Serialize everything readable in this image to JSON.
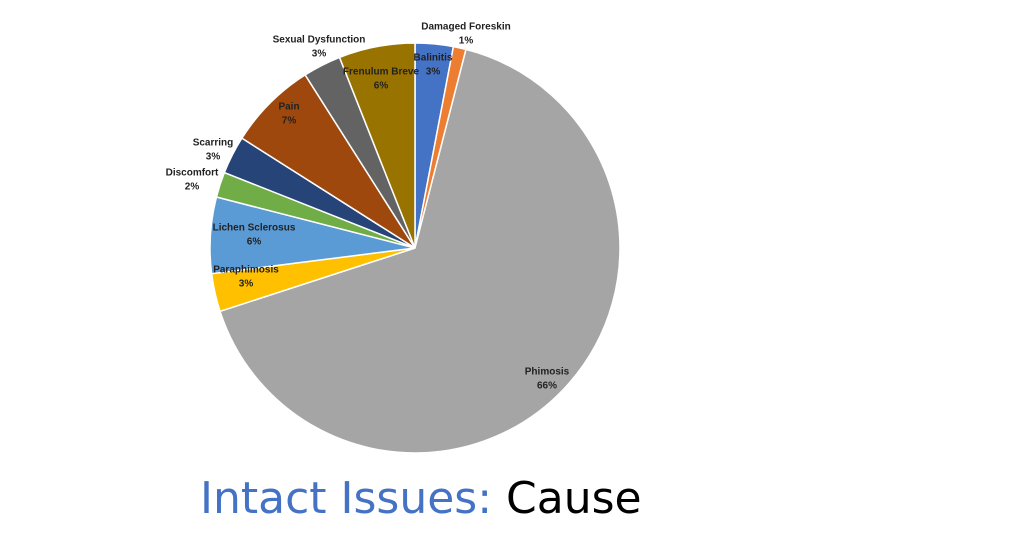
{
  "chart_data": {
    "type": "pie",
    "title": [
      "Intact Issues:",
      "Cause"
    ],
    "title_colors": [
      "#4472c4",
      "#000000"
    ],
    "categories": [
      "Balinitis",
      "Damaged Foreskin",
      "Phimosis",
      "Paraphimosis",
      "Lichen Sclerosus",
      "Discomfort",
      "Scarring",
      "Pain",
      "Sexual Dysfunction",
      "Frenulum Breve"
    ],
    "values": [
      3,
      1,
      66,
      3,
      6,
      2,
      3,
      7,
      3,
      6
    ],
    "value_labels": [
      "3%",
      "1%",
      "66%",
      "3%",
      "6%",
      "2%",
      "3%",
      "7%",
      "3%",
      "6%"
    ],
    "colors": [
      "#4472c4",
      "#ed7d31",
      "#a5a5a5",
      "#ffc000",
      "#5b9bd5",
      "#70ad47",
      "#264478",
      "#9e480e",
      "#636363",
      "#997300"
    ]
  }
}
